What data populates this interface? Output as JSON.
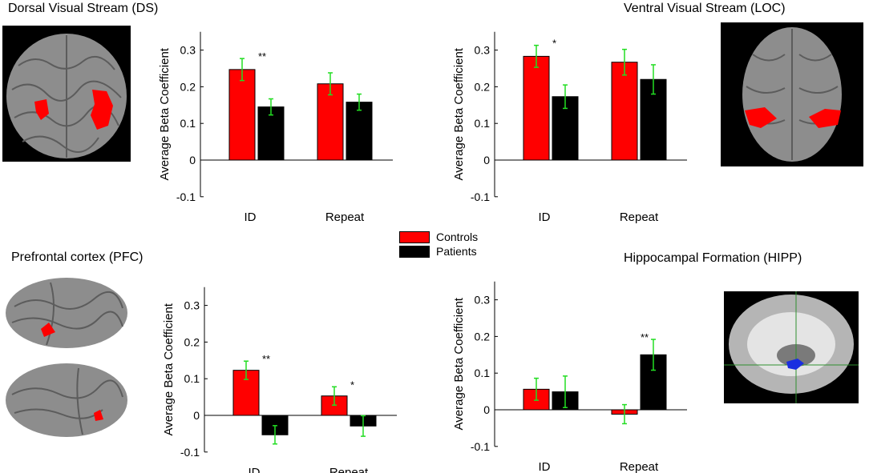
{
  "titles": {
    "ds": "Dorsal Visual Stream (DS)",
    "loc": "Ventral Visual  Stream (LOC)",
    "pfc": "Prefrontal cortex (PFC)",
    "hipp": "Hippocampal Formation (HIPP)"
  },
  "legend": {
    "controls": "Controls",
    "patients": "Patients"
  },
  "colors": {
    "controls": "#ff0000",
    "patients": "#000000",
    "errorbar": "#22dd22",
    "hipp_roi": "#1a2ee0"
  },
  "chart_data": [
    {
      "id": "ds",
      "type": "bar",
      "ylabel": "Average Beta Coefficient",
      "categories": [
        "ID",
        "Repeat"
      ],
      "ylim": [
        -0.1,
        0.35
      ],
      "yticks": [
        -0.1,
        0,
        0.1,
        0.2,
        0.3
      ],
      "ytick_labels": [
        "-0.1",
        "0",
        "0.1",
        "0.2",
        "0.3"
      ],
      "series": [
        {
          "name": "Controls",
          "values": [
            0.247,
            0.208
          ],
          "errors": [
            0.03,
            0.03
          ]
        },
        {
          "name": "Patients",
          "values": [
            0.145,
            0.158
          ],
          "errors": [
            0.022,
            0.022
          ]
        }
      ],
      "significance": [
        {
          "category": "ID",
          "label": "**"
        }
      ]
    },
    {
      "id": "loc",
      "type": "bar",
      "ylabel": "Average Beta Coefficient",
      "categories": [
        "ID",
        "Repeat"
      ],
      "ylim": [
        -0.1,
        0.35
      ],
      "yticks": [
        -0.1,
        0,
        0.1,
        0.2,
        0.3
      ],
      "ytick_labels": [
        "-0.1",
        "0",
        "0.1",
        "0.2",
        "0.3"
      ],
      "series": [
        {
          "name": "Controls",
          "values": [
            0.283,
            0.267
          ],
          "errors": [
            0.03,
            0.035
          ]
        },
        {
          "name": "Patients",
          "values": [
            0.173,
            0.22
          ],
          "errors": [
            0.032,
            0.04
          ]
        }
      ],
      "significance": [
        {
          "category": "ID",
          "label": "*"
        }
      ]
    },
    {
      "id": "pfc",
      "type": "bar",
      "ylabel": "Average Beta Coefficient",
      "categories": [
        "ID",
        "Repeat"
      ],
      "ylim": [
        -0.1,
        0.35
      ],
      "yticks": [
        -0.1,
        0,
        0.1,
        0.2,
        0.3
      ],
      "ytick_labels": [
        "-0.1",
        "0",
        "0.1",
        "0.2",
        "0.3"
      ],
      "series": [
        {
          "name": "Controls",
          "values": [
            0.123,
            0.053
          ],
          "errors": [
            0.025,
            0.025
          ]
        },
        {
          "name": "Patients",
          "values": [
            -0.053,
            -0.029
          ],
          "errors": [
            0.025,
            0.028
          ]
        }
      ],
      "significance": [
        {
          "category": "ID",
          "label": "**"
        },
        {
          "category": "Repeat",
          "label": "*"
        }
      ]
    },
    {
      "id": "hipp",
      "type": "bar",
      "ylabel": "Average Beta Coefficient",
      "categories": [
        "ID",
        "Repeat"
      ],
      "ylim": [
        -0.1,
        0.35
      ],
      "yticks": [
        -0.1,
        0,
        0.1,
        0.2,
        0.3
      ],
      "ytick_labels": [
        "-0.1",
        "0",
        "0.1",
        "0.2",
        "0.3"
      ],
      "series": [
        {
          "name": "Controls",
          "values": [
            0.056,
            -0.012
          ],
          "errors": [
            0.03,
            0.026
          ]
        },
        {
          "name": "Patients",
          "values": [
            0.049,
            0.15
          ],
          "errors": [
            0.043,
            0.042
          ]
        }
      ],
      "significance": [
        {
          "category": "Repeat",
          "label": "**"
        }
      ]
    }
  ]
}
